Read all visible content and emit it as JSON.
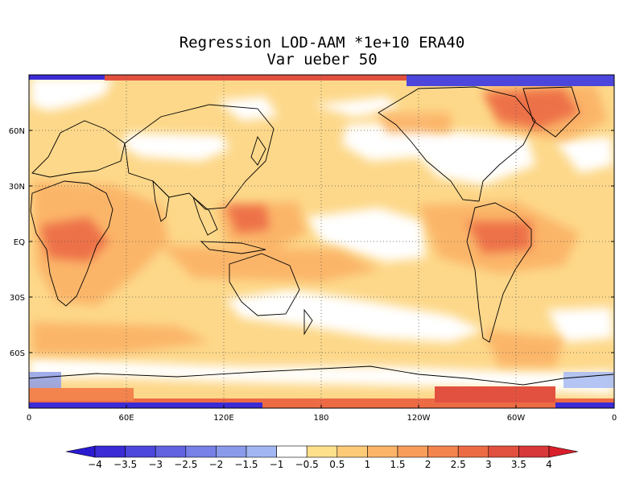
{
  "title": "Regression LOD-AAM *1e+10 ERA40",
  "subtitle": "Var ueber 50",
  "map": {
    "projection": "cylindrical equidistant, 0-360 longitude, centered on dateline",
    "lat_ticks": [
      "60N",
      "30N",
      "EQ",
      "30S",
      "60S"
    ],
    "lon_ticks": [
      "0",
      "60E",
      "120E",
      "180",
      "120W",
      "60W",
      "0"
    ],
    "grid": "dotted",
    "field": "regression of LOD on AAM, colour-shaded"
  },
  "colorbar": {
    "labels": [
      "-4",
      "-3.5",
      "-3",
      "-2.5",
      "-2",
      "-1.5",
      "-1",
      "-0.5",
      "0.5",
      "1",
      "1.5",
      "2",
      "2.5",
      "3",
      "3.5",
      "4"
    ],
    "colors": [
      "#3a2bd6",
      "#4d46dc",
      "#6163e0",
      "#7680e6",
      "#8a9aea",
      "#a1b6f2",
      "#ffffff",
      "#fee08b",
      "#fdca78",
      "#fbb468",
      "#f89e5a",
      "#f3844e",
      "#ec6b45",
      "#e2513f",
      "#d8383a"
    ],
    "under_color": "#2a1ad0",
    "over_color": "#d81f2b"
  }
}
